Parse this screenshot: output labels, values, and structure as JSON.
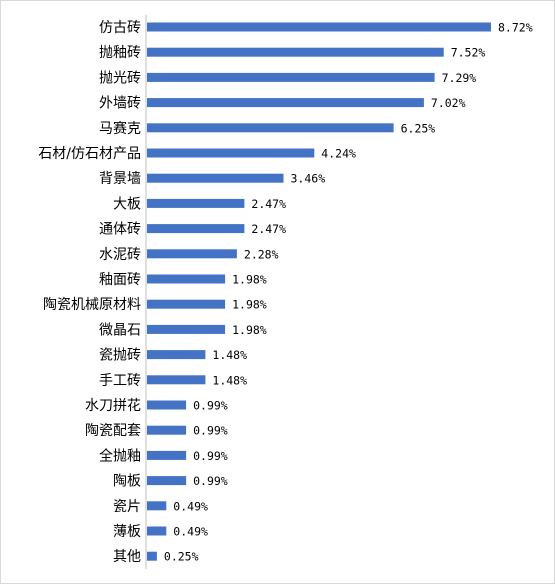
{
  "chart_data": {
    "type": "bar",
    "orientation": "horizontal",
    "categories": [
      "仿古砖",
      "抛釉砖",
      "抛光砖",
      "外墙砖",
      "马赛克",
      "石材/仿石材产品",
      "背景墙",
      "大板",
      "通体砖",
      "水泥砖",
      "釉面砖",
      "陶瓷机械原材料",
      "微晶石",
      "瓷抛砖",
      "手工砖",
      "水刀拼花",
      "陶瓷配套",
      "全抛釉",
      "陶板",
      "瓷片",
      "薄板",
      "其他"
    ],
    "values": [
      8.72,
      7.52,
      7.29,
      7.02,
      6.25,
      4.24,
      3.46,
      2.47,
      2.47,
      2.28,
      1.98,
      1.98,
      1.98,
      1.48,
      1.48,
      0.99,
      0.99,
      0.99,
      0.99,
      0.49,
      0.49,
      0.25
    ],
    "value_labels": [
      "8.72%",
      "7.52%",
      "7.29%",
      "7.02%",
      "6.25%",
      "4.24%",
      "3.46%",
      "2.47%",
      "2.47%",
      "2.28%",
      "1.98%",
      "1.98%",
      "1.98%",
      "1.48%",
      "1.48%",
      "0.99%",
      "0.99%",
      "0.99%",
      "0.99%",
      "0.49%",
      "0.49%",
      "0.25%"
    ],
    "xlim": [
      0,
      8.72
    ],
    "grid": false,
    "legend": "none"
  },
  "colors": {
    "bar": "#4472c4",
    "axis": "#bfbfbf"
  }
}
